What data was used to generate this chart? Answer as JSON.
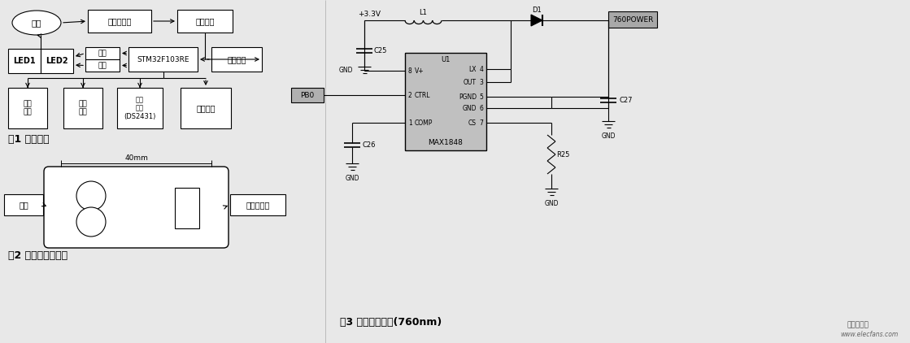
{
  "bg_color": "#e8e8e8",
  "fig_width": 11.19,
  "fig_height": 4.22,
  "fig1_label": "图1 系统框图",
  "fig2_label": "图2 探头外部示意图",
  "fig3_label": "图3 光源驱动电路(760nm)",
  "watermark": "www.elecfans.com",
  "elecfans_text": "电子发烧友"
}
